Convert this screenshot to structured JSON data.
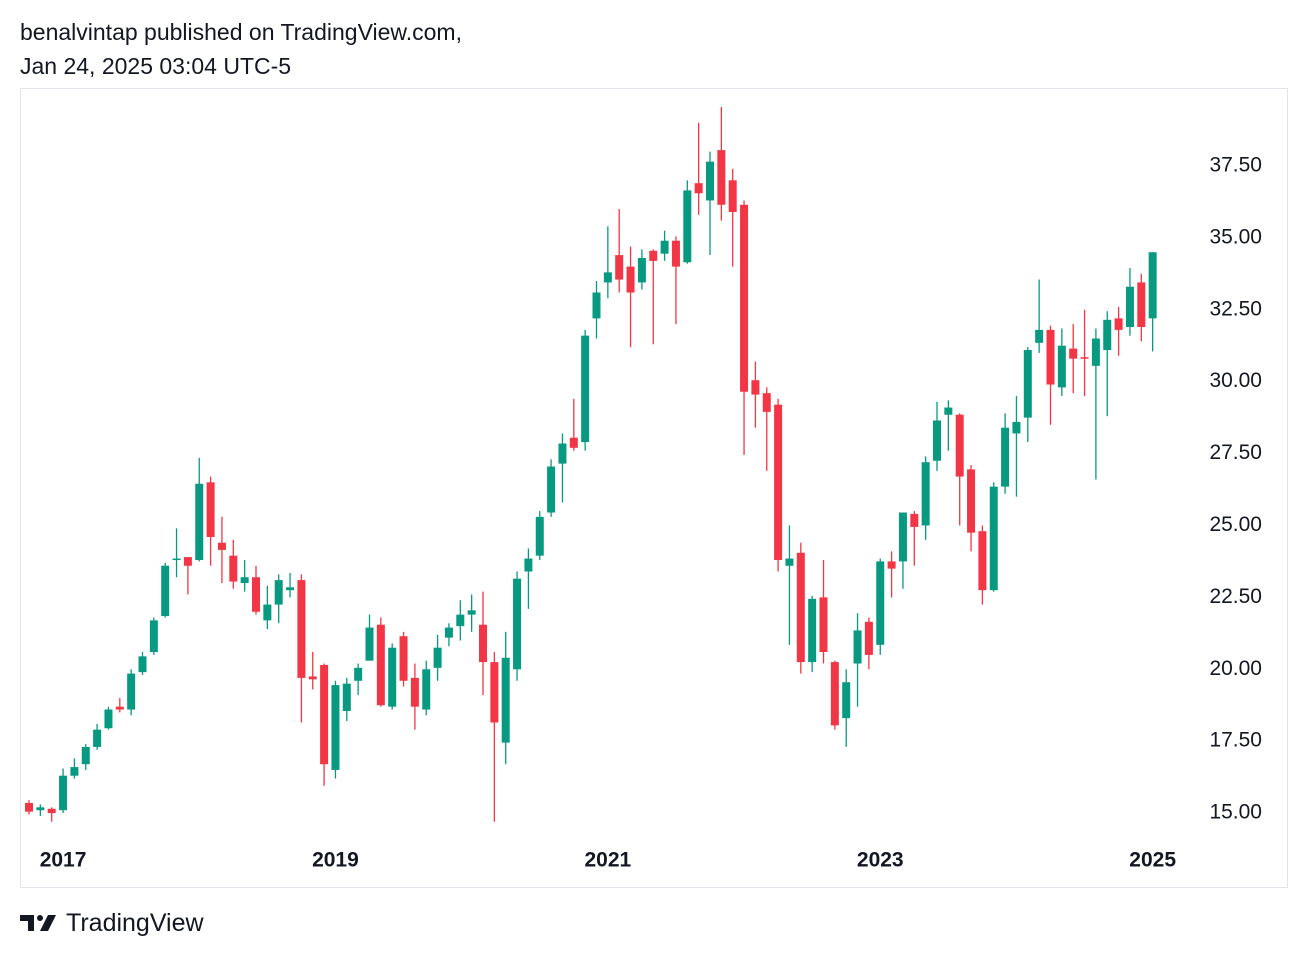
{
  "header": {
    "line1": "benalvintap published on TradingView.com,",
    "line2": "Jan 24, 2025 03:04 UTC-5"
  },
  "footer": {
    "brand": "TradingView"
  },
  "chart_data": {
    "type": "candlestick",
    "categories": [
      null,
      null,
      null,
      "2017",
      null,
      null,
      null,
      null,
      null,
      null,
      null,
      null,
      null,
      null,
      null,
      null,
      null,
      null,
      null,
      null,
      null,
      null,
      null,
      null,
      null,
      null,
      null,
      "2019",
      null,
      null,
      null,
      null,
      null,
      null,
      null,
      null,
      null,
      null,
      null,
      null,
      null,
      null,
      null,
      null,
      null,
      null,
      null,
      null,
      null,
      null,
      null,
      "2021",
      null,
      null,
      null,
      null,
      null,
      null,
      null,
      null,
      null,
      null,
      null,
      null,
      null,
      null,
      null,
      null,
      null,
      null,
      null,
      null,
      null,
      null,
      null,
      "2023",
      null,
      null,
      null,
      null,
      null,
      null,
      null,
      null,
      null,
      null,
      null,
      null,
      null,
      null,
      null,
      null,
      null,
      null,
      null,
      null,
      null,
      null,
      null,
      "2025"
    ],
    "open": [
      15.35,
      15.1,
      15.15,
      15.1,
      16.3,
      16.7,
      17.3,
      17.95,
      18.7,
      18.6,
      19.9,
      20.6,
      21.85,
      23.8,
      23.9,
      23.8,
      26.5,
      24.4,
      23.95,
      23.0,
      23.2,
      21.7,
      22.25,
      22.75,
      23.1,
      19.75,
      20.15,
      16.5,
      18.55,
      19.6,
      20.3,
      21.55,
      18.7,
      21.15,
      19.7,
      18.6,
      20.05,
      21.1,
      21.5,
      21.9,
      21.55,
      20.25,
      17.45,
      20.0,
      23.4,
      23.95,
      25.45,
      27.15,
      28.05,
      27.9,
      32.2,
      33.45,
      34.4,
      34.0,
      33.45,
      34.55,
      34.45,
      34.9,
      34.15,
      36.9,
      36.3,
      38.05,
      37.0,
      36.15,
      30.05,
      29.6,
      29.2,
      23.6,
      24.05,
      20.25,
      22.5,
      20.25,
      18.3,
      20.2,
      21.65,
      20.85,
      23.75,
      23.75,
      25.4,
      25.0,
      27.25,
      28.85,
      28.85,
      26.95,
      24.8,
      22.75,
      26.35,
      28.2,
      28.75,
      31.35,
      31.8,
      29.8,
      31.15,
      30.85,
      30.55,
      31.1,
      32.2,
      31.9,
      33.45,
      32.2
    ],
    "high": [
      15.45,
      15.3,
      15.2,
      16.55,
      16.9,
      17.4,
      18.1,
      18.7,
      19.0,
      20.0,
      20.6,
      21.8,
      23.7,
      24.9,
      23.9,
      27.35,
      26.7,
      25.3,
      24.5,
      23.8,
      23.6,
      22.9,
      23.3,
      23.35,
      23.3,
      20.6,
      20.2,
      19.6,
      19.7,
      20.2,
      21.9,
      21.8,
      20.9,
      21.3,
      20.2,
      20.3,
      21.2,
      21.6,
      22.4,
      22.6,
      22.7,
      20.6,
      21.3,
      23.4,
      24.2,
      25.5,
      27.3,
      28.2,
      29.4,
      31.8,
      33.5,
      35.4,
      36.0,
      34.7,
      34.6,
      34.6,
      35.25,
      35.05,
      37.0,
      39.0,
      38.0,
      39.55,
      37.4,
      36.3,
      30.7,
      29.8,
      29.4,
      25.0,
      24.4,
      22.55,
      23.8,
      20.3,
      20.0,
      21.95,
      21.8,
      23.85,
      24.1,
      25.45,
      25.5,
      27.4,
      29.3,
      29.35,
      28.9,
      27.1,
      25.0,
      26.5,
      28.9,
      29.5,
      31.2,
      33.55,
      31.95,
      31.85,
      32.0,
      32.5,
      31.85,
      32.45,
      32.6,
      33.95,
      33.75,
      34.5
    ],
    "low": [
      14.95,
      14.9,
      14.7,
      15.0,
      16.2,
      16.5,
      17.2,
      17.9,
      18.5,
      18.4,
      19.8,
      20.5,
      21.8,
      23.2,
      22.6,
      23.75,
      23.6,
      23.0,
      22.8,
      22.7,
      21.9,
      21.4,
      21.6,
      22.5,
      18.15,
      19.3,
      15.95,
      16.2,
      18.2,
      19.1,
      20.3,
      18.7,
      18.6,
      19.4,
      17.9,
      18.4,
      19.6,
      20.8,
      21.0,
      21.3,
      19.1,
      14.7,
      16.7,
      19.6,
      22.1,
      23.8,
      25.3,
      25.8,
      27.6,
      27.6,
      31.5,
      32.9,
      33.1,
      31.2,
      33.2,
      31.3,
      34.2,
      32.0,
      34.1,
      35.8,
      34.4,
      35.6,
      34.0,
      27.45,
      28.4,
      26.9,
      23.4,
      20.85,
      19.85,
      19.9,
      20.2,
      17.9,
      17.3,
      18.7,
      20.0,
      20.5,
      22.5,
      22.8,
      23.6,
      24.5,
      26.9,
      27.6,
      25.0,
      24.1,
      22.25,
      22.7,
      26.1,
      26.0,
      27.9,
      31.0,
      28.5,
      29.5,
      29.6,
      29.5,
      26.6,
      28.8,
      30.9,
      31.6,
      31.4,
      31.05
    ],
    "close": [
      15.05,
      15.2,
      15.0,
      16.3,
      16.6,
      17.3,
      17.9,
      18.6,
      18.6,
      19.85,
      20.45,
      21.7,
      23.6,
      23.85,
      23.6,
      26.45,
      24.6,
      24.15,
      23.05,
      23.2,
      22.0,
      22.25,
      23.1,
      22.85,
      19.7,
      19.65,
      16.7,
      19.45,
      19.5,
      20.05,
      21.45,
      18.75,
      20.75,
      19.6,
      18.7,
      20.0,
      20.75,
      21.45,
      21.9,
      22.05,
      20.25,
      18.15,
      20.4,
      23.15,
      23.85,
      25.3,
      27.05,
      27.85,
      27.7,
      31.6,
      33.1,
      33.8,
      33.55,
      33.1,
      34.3,
      34.2,
      34.9,
      34.0,
      36.65,
      36.55,
      37.65,
      36.15,
      35.9,
      29.65,
      29.55,
      28.95,
      23.8,
      23.85,
      20.25,
      22.45,
      20.6,
      18.05,
      19.55,
      21.35,
      20.5,
      23.75,
      23.5,
      25.45,
      24.95,
      27.2,
      28.65,
      29.1,
      26.7,
      24.75,
      22.75,
      26.35,
      28.4,
      28.6,
      31.1,
      31.8,
      29.9,
      31.25,
      30.8,
      30.8,
      31.5,
      32.15,
      31.8,
      33.3,
      31.9,
      34.5
    ],
    "up_color": "#089981",
    "down_color": "#f23645",
    "ylim": [
      12.43,
      40.21
    ],
    "yticks": [
      {
        "value": 15,
        "label": "15.00"
      },
      {
        "value": 17.5,
        "label": "17.50"
      },
      {
        "value": 20,
        "label": "20.00"
      },
      {
        "value": 22.5,
        "label": "22.50"
      },
      {
        "value": 25,
        "label": "25.00"
      },
      {
        "value": 27.5,
        "label": "27.50"
      },
      {
        "value": 30,
        "label": "30.00"
      },
      {
        "value": 32.5,
        "label": "32.50"
      },
      {
        "value": 35,
        "label": "35.00"
      },
      {
        "value": 37.5,
        "label": "37.50"
      }
    ],
    "grid": false
  }
}
